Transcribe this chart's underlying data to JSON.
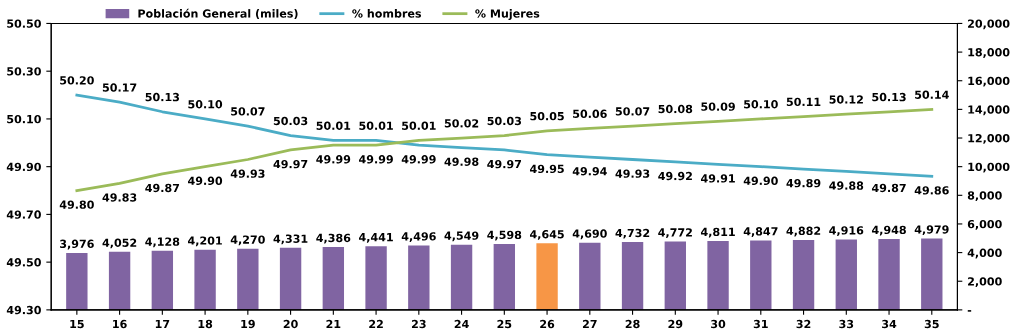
{
  "chart_data": {
    "type": "bar",
    "categories": [
      "15",
      "16",
      "17",
      "18",
      "19",
      "20",
      "21",
      "22",
      "23",
      "24",
      "25",
      "26",
      "27",
      "28",
      "29",
      "30",
      "31",
      "32",
      "33",
      "34",
      "35"
    ],
    "series": [
      {
        "name": "Población General (miles)",
        "axis": "y2",
        "color": "#8064a2",
        "colors": [
          "#8064a2",
          "#8064a2",
          "#8064a2",
          "#8064a2",
          "#8064a2",
          "#8064a2",
          "#8064a2",
          "#8064a2",
          "#8064a2",
          "#8064a2",
          "#8064a2",
          "#f79646",
          "#8064a2",
          "#8064a2",
          "#8064a2",
          "#8064a2",
          "#8064a2",
          "#8064a2",
          "#8064a2",
          "#8064a2",
          "#8064a2"
        ],
        "values": [
          3976,
          4052,
          4128,
          4201,
          4270,
          4331,
          4386,
          4441,
          4496,
          4549,
          4598,
          4645,
          4690,
          4732,
          4772,
          4811,
          4847,
          4882,
          4916,
          4948,
          4979
        ],
        "value_labels": [
          "3,976",
          "4,052",
          "4,128",
          "4,201",
          "4,270",
          "4,331",
          "4,386",
          "4,441",
          "4,496",
          "4,549",
          "4,598",
          "4,645",
          "4,690",
          "4,732",
          "4,772",
          "4,811",
          "4,847",
          "4,882",
          "4,916",
          "4,948",
          "4,979"
        ]
      },
      {
        "name": "% hombres",
        "type": "line",
        "color": "#4bacc6",
        "values": [
          50.2,
          50.17,
          50.13,
          50.1,
          50.07,
          50.03,
          50.01,
          50.01,
          49.99,
          49.98,
          49.97,
          49.95,
          49.94,
          49.93,
          49.92,
          49.91,
          49.9,
          49.89,
          49.88,
          49.87,
          49.86
        ],
        "value_labels": [
          "50.20",
          "50.17",
          "50.13",
          "50.10",
          "50.07",
          "50.03",
          "50.01",
          "50.01",
          "49.99",
          "49.98",
          "49.97",
          "49.95",
          "49.94",
          "49.93",
          "49.92",
          "49.91",
          "49.90",
          "49.89",
          "49.88",
          "49.87",
          "49.86"
        ]
      },
      {
        "name": "% Mujeres",
        "type": "line",
        "color": "#9bbb59",
        "values": [
          49.8,
          49.83,
          49.87,
          49.9,
          49.93,
          49.97,
          49.99,
          49.99,
          50.01,
          50.02,
          50.03,
          50.05,
          50.06,
          50.07,
          50.08,
          50.09,
          50.1,
          50.11,
          50.12,
          50.13,
          50.14
        ],
        "value_labels": [
          "49.80",
          "49.83",
          "49.87",
          "49.90",
          "49.93",
          "49.97",
          "49.99",
          "49.99",
          "50.01",
          "50.02",
          "50.03",
          "50.05",
          "50.06",
          "50.07",
          "50.08",
          "50.09",
          "50.10",
          "50.11",
          "50.12",
          "50.13",
          "50.14"
        ]
      }
    ],
    "ylim": [
      49.3,
      50.5
    ],
    "yticks": [
      {
        "value": 49.3,
        "label": "49.30"
      },
      {
        "value": 49.5,
        "label": "49.50"
      },
      {
        "value": 49.7,
        "label": "49.70"
      },
      {
        "value": 49.9,
        "label": "49.90"
      },
      {
        "value": 50.1,
        "label": "50.10"
      },
      {
        "value": 50.3,
        "label": "50.30"
      },
      {
        "value": 50.5,
        "label": "50.50"
      }
    ],
    "y2lim": [
      0,
      20000
    ],
    "y2ticks": [
      {
        "value": 0,
        "label": "-"
      },
      {
        "value": 2000,
        "label": "2,000"
      },
      {
        "value": 4000,
        "label": "4,000"
      },
      {
        "value": 6000,
        "label": "6,000"
      },
      {
        "value": 8000,
        "label": "8,000"
      },
      {
        "value": 10000,
        "label": "10,000"
      },
      {
        "value": 12000,
        "label": "12,000"
      },
      {
        "value": 14000,
        "label": "14,000"
      },
      {
        "value": 16000,
        "label": "16,000"
      },
      {
        "value": 18000,
        "label": "18,000"
      },
      {
        "value": 20000,
        "label": "20,000"
      }
    ],
    "grid": false,
    "legend": "top"
  }
}
